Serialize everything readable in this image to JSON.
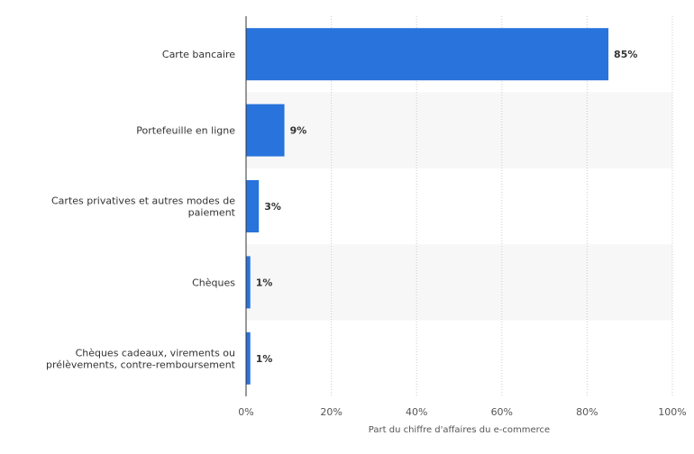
{
  "chart_data": {
    "type": "bar",
    "orientation": "horizontal",
    "categories": [
      [
        "Carte bancaire"
      ],
      [
        "Portefeuille en ligne"
      ],
      [
        "Cartes privatives et autres modes de",
        "paiement"
      ],
      [
        "Chèques"
      ],
      [
        "Chèques cadeaux, virements ou",
        "prélèvements, contre-remboursement"
      ]
    ],
    "values": [
      85,
      9,
      3,
      1,
      1
    ],
    "value_labels": [
      "85%",
      "9%",
      "3%",
      "1%",
      "1%"
    ],
    "xlabel": "Part du chiffre d'affaires du e-commerce",
    "xlim": [
      0,
      100
    ],
    "xticks": [
      0,
      20,
      40,
      60,
      80,
      100
    ],
    "xtick_labels": [
      "0%",
      "20%",
      "40%",
      "60%",
      "80%",
      "100%"
    ],
    "grid": true,
    "bar_color": "#2873dc",
    "band_color": "#f7f7f7"
  }
}
